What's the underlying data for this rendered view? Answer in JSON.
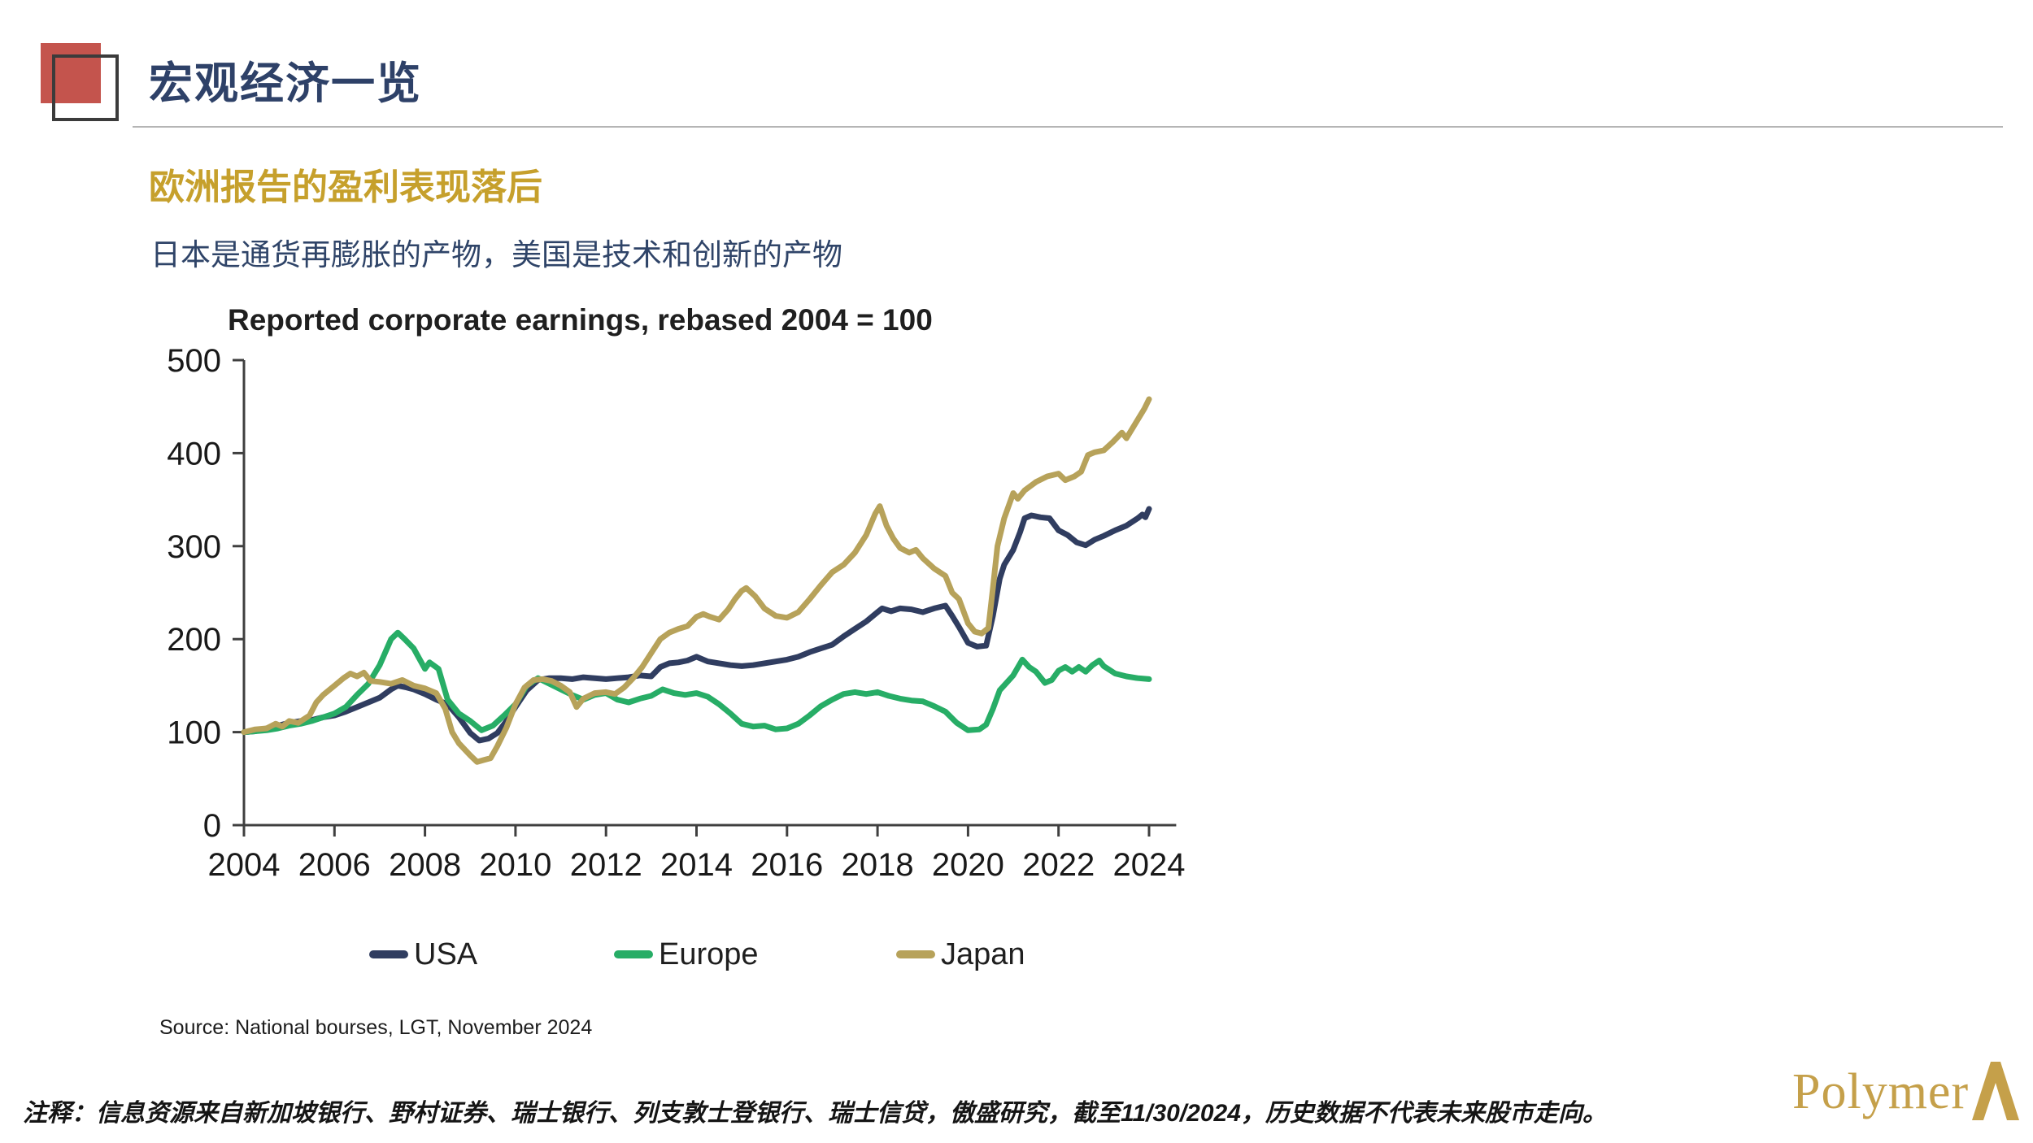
{
  "slide": {
    "title": "宏观经济一览",
    "heading": "欧洲报告的盈利表现落后",
    "subtitle": "日本是通货再膨胀的产物，美国是技术和创新的产物",
    "source": "Source: National bourses, LGT, November 2024",
    "footnote": "注释：信息资源来自新加坡银行、野村证券、瑞士银行、列支敦士登银行、瑞士信贷，傲盛研究，截至11/30/2024，历史数据不代表未来股市走向。",
    "brand": "Polymer",
    "colors": {
      "accent_red": "#c4544d",
      "outline_gray": "#3b3b3b",
      "title_navy": "#2e4168",
      "heading_gold": "#c6a02c",
      "brand_gold": "#c5a04a",
      "axis": "#3f3f3f",
      "divider": "#b5b5b5"
    }
  },
  "chart_data": {
    "type": "line",
    "title": "Reported corporate earnings, rebased 2004 = 100",
    "xlabel": "",
    "ylabel": "",
    "xlim": [
      2004,
      2024.6
    ],
    "ylim": [
      0,
      500
    ],
    "x_ticks": [
      2004,
      2006,
      2008,
      2010,
      2012,
      2014,
      2016,
      2018,
      2020,
      2022,
      2024
    ],
    "y_ticks": [
      0,
      100,
      200,
      300,
      400,
      500
    ],
    "grid": false,
    "legend_position": "bottom",
    "series": [
      {
        "name": "USA",
        "color": "#303d60",
        "points": [
          [
            2004.0,
            100
          ],
          [
            2004.25,
            101
          ],
          [
            2004.5,
            104
          ],
          [
            2004.75,
            107
          ],
          [
            2005.0,
            110
          ],
          [
            2005.25,
            112
          ],
          [
            2005.5,
            113
          ],
          [
            2005.75,
            116
          ],
          [
            2006.0,
            118
          ],
          [
            2006.25,
            122
          ],
          [
            2006.5,
            127
          ],
          [
            2006.75,
            132
          ],
          [
            2007.0,
            137
          ],
          [
            2007.25,
            146
          ],
          [
            2007.4,
            150
          ],
          [
            2007.6,
            148
          ],
          [
            2007.75,
            146
          ],
          [
            2008.0,
            141
          ],
          [
            2008.25,
            135
          ],
          [
            2008.5,
            130
          ],
          [
            2008.75,
            116
          ],
          [
            2009.0,
            99
          ],
          [
            2009.2,
            91
          ],
          [
            2009.4,
            93
          ],
          [
            2009.6,
            99
          ],
          [
            2009.8,
            112
          ],
          [
            2010.0,
            127
          ],
          [
            2010.25,
            145
          ],
          [
            2010.5,
            156
          ],
          [
            2010.75,
            158
          ],
          [
            2011.0,
            158
          ],
          [
            2011.25,
            157
          ],
          [
            2011.5,
            159
          ],
          [
            2011.75,
            158
          ],
          [
            2012.0,
            157
          ],
          [
            2012.25,
            158
          ],
          [
            2012.5,
            159
          ],
          [
            2012.75,
            161
          ],
          [
            2013.0,
            160
          ],
          [
            2013.2,
            170
          ],
          [
            2013.4,
            174
          ],
          [
            2013.6,
            175
          ],
          [
            2013.8,
            177
          ],
          [
            2014.0,
            181
          ],
          [
            2014.25,
            176
          ],
          [
            2014.5,
            174
          ],
          [
            2014.75,
            172
          ],
          [
            2015.0,
            171
          ],
          [
            2015.25,
            172
          ],
          [
            2015.5,
            174
          ],
          [
            2015.75,
            176
          ],
          [
            2016.0,
            178
          ],
          [
            2016.25,
            181
          ],
          [
            2016.5,
            186
          ],
          [
            2016.75,
            190
          ],
          [
            2017.0,
            194
          ],
          [
            2017.25,
            203
          ],
          [
            2017.5,
            211
          ],
          [
            2017.75,
            219
          ],
          [
            2018.0,
            229
          ],
          [
            2018.1,
            233
          ],
          [
            2018.3,
            230
          ],
          [
            2018.5,
            233
          ],
          [
            2018.75,
            232
          ],
          [
            2019.0,
            229
          ],
          [
            2019.25,
            233
          ],
          [
            2019.5,
            236
          ],
          [
            2019.65,
            225
          ],
          [
            2019.8,
            213
          ],
          [
            2020.0,
            196
          ],
          [
            2020.2,
            192
          ],
          [
            2020.4,
            193
          ],
          [
            2020.55,
            225
          ],
          [
            2020.7,
            265
          ],
          [
            2020.8,
            280
          ],
          [
            2021.0,
            296
          ],
          [
            2021.15,
            315
          ],
          [
            2021.25,
            330
          ],
          [
            2021.4,
            333
          ],
          [
            2021.6,
            331
          ],
          [
            2021.8,
            330
          ],
          [
            2022.0,
            317
          ],
          [
            2022.2,
            312
          ],
          [
            2022.4,
            304
          ],
          [
            2022.6,
            301
          ],
          [
            2022.8,
            307
          ],
          [
            2023.0,
            311
          ],
          [
            2023.25,
            317
          ],
          [
            2023.5,
            322
          ],
          [
            2023.75,
            330
          ],
          [
            2023.85,
            334
          ],
          [
            2023.92,
            331
          ],
          [
            2024.0,
            340
          ]
        ]
      },
      {
        "name": "Europe",
        "color": "#27ad66",
        "points": [
          [
            2004.0,
            100
          ],
          [
            2004.25,
            101
          ],
          [
            2004.5,
            102
          ],
          [
            2004.75,
            104
          ],
          [
            2005.0,
            107
          ],
          [
            2005.25,
            109
          ],
          [
            2005.5,
            112
          ],
          [
            2005.75,
            116
          ],
          [
            2006.0,
            120
          ],
          [
            2006.25,
            127
          ],
          [
            2006.5,
            140
          ],
          [
            2006.75,
            152
          ],
          [
            2007.0,
            172
          ],
          [
            2007.25,
            200
          ],
          [
            2007.4,
            207
          ],
          [
            2007.55,
            200
          ],
          [
            2007.75,
            190
          ],
          [
            2008.0,
            168
          ],
          [
            2008.1,
            175
          ],
          [
            2008.3,
            168
          ],
          [
            2008.5,
            135
          ],
          [
            2008.75,
            120
          ],
          [
            2009.0,
            112
          ],
          [
            2009.25,
            102
          ],
          [
            2009.5,
            107
          ],
          [
            2009.75,
            118
          ],
          [
            2010.0,
            130
          ],
          [
            2010.25,
            150
          ],
          [
            2010.5,
            158
          ],
          [
            2010.75,
            152
          ],
          [
            2011.0,
            146
          ],
          [
            2011.25,
            140
          ],
          [
            2011.5,
            135
          ],
          [
            2011.75,
            140
          ],
          [
            2012.0,
            142
          ],
          [
            2012.25,
            135
          ],
          [
            2012.5,
            132
          ],
          [
            2012.75,
            136
          ],
          [
            2013.0,
            139
          ],
          [
            2013.25,
            146
          ],
          [
            2013.5,
            142
          ],
          [
            2013.75,
            140
          ],
          [
            2014.0,
            142
          ],
          [
            2014.25,
            138
          ],
          [
            2014.5,
            130
          ],
          [
            2014.75,
            120
          ],
          [
            2015.0,
            109
          ],
          [
            2015.25,
            106
          ],
          [
            2015.5,
            107
          ],
          [
            2015.75,
            103
          ],
          [
            2016.0,
            104
          ],
          [
            2016.25,
            109
          ],
          [
            2016.5,
            118
          ],
          [
            2016.75,
            128
          ],
          [
            2017.0,
            135
          ],
          [
            2017.25,
            141
          ],
          [
            2017.5,
            143
          ],
          [
            2017.75,
            141
          ],
          [
            2018.0,
            143
          ],
          [
            2018.25,
            139
          ],
          [
            2018.5,
            136
          ],
          [
            2018.75,
            134
          ],
          [
            2019.0,
            133
          ],
          [
            2019.25,
            128
          ],
          [
            2019.5,
            122
          ],
          [
            2019.75,
            110
          ],
          [
            2020.0,
            102
          ],
          [
            2020.25,
            103
          ],
          [
            2020.4,
            108
          ],
          [
            2020.55,
            125
          ],
          [
            2020.7,
            145
          ],
          [
            2020.85,
            153
          ],
          [
            2021.0,
            161
          ],
          [
            2021.2,
            178
          ],
          [
            2021.35,
            170
          ],
          [
            2021.5,
            165
          ],
          [
            2021.7,
            153
          ],
          [
            2021.85,
            156
          ],
          [
            2022.0,
            166
          ],
          [
            2022.15,
            170
          ],
          [
            2022.3,
            165
          ],
          [
            2022.45,
            170
          ],
          [
            2022.6,
            165
          ],
          [
            2022.75,
            172
          ],
          [
            2022.9,
            177
          ],
          [
            2023.0,
            171
          ],
          [
            2023.25,
            163
          ],
          [
            2023.5,
            160
          ],
          [
            2023.75,
            158
          ],
          [
            2024.0,
            157
          ]
        ]
      },
      {
        "name": "Japan",
        "color": "#b7a25a",
        "points": [
          [
            2004.0,
            100
          ],
          [
            2004.25,
            103
          ],
          [
            2004.5,
            104
          ],
          [
            2004.7,
            109
          ],
          [
            2004.85,
            106
          ],
          [
            2005.0,
            112
          ],
          [
            2005.2,
            110
          ],
          [
            2005.45,
            118
          ],
          [
            2005.6,
            132
          ],
          [
            2005.75,
            140
          ],
          [
            2006.0,
            150
          ],
          [
            2006.2,
            158
          ],
          [
            2006.35,
            163
          ],
          [
            2006.5,
            160
          ],
          [
            2006.65,
            164
          ],
          [
            2006.8,
            155
          ],
          [
            2007.0,
            154
          ],
          [
            2007.25,
            152
          ],
          [
            2007.5,
            156
          ],
          [
            2007.75,
            150
          ],
          [
            2008.0,
            147
          ],
          [
            2008.25,
            142
          ],
          [
            2008.45,
            125
          ],
          [
            2008.6,
            100
          ],
          [
            2008.75,
            88
          ],
          [
            2009.0,
            75
          ],
          [
            2009.15,
            68
          ],
          [
            2009.3,
            70
          ],
          [
            2009.45,
            72
          ],
          [
            2009.6,
            85
          ],
          [
            2009.8,
            105
          ],
          [
            2010.0,
            130
          ],
          [
            2010.2,
            148
          ],
          [
            2010.4,
            156
          ],
          [
            2010.6,
            157
          ],
          [
            2010.8,
            155
          ],
          [
            2011.0,
            150
          ],
          [
            2011.2,
            143
          ],
          [
            2011.35,
            127
          ],
          [
            2011.5,
            136
          ],
          [
            2011.75,
            142
          ],
          [
            2012.0,
            143
          ],
          [
            2012.2,
            141
          ],
          [
            2012.4,
            148
          ],
          [
            2012.6,
            158
          ],
          [
            2012.8,
            170
          ],
          [
            2013.0,
            185
          ],
          [
            2013.2,
            200
          ],
          [
            2013.4,
            207
          ],
          [
            2013.6,
            211
          ],
          [
            2013.8,
            214
          ],
          [
            2014.0,
            224
          ],
          [
            2014.15,
            227
          ],
          [
            2014.3,
            224
          ],
          [
            2014.5,
            221
          ],
          [
            2014.7,
            232
          ],
          [
            2014.85,
            243
          ],
          [
            2015.0,
            252
          ],
          [
            2015.1,
            255
          ],
          [
            2015.3,
            246
          ],
          [
            2015.5,
            233
          ],
          [
            2015.75,
            225
          ],
          [
            2016.0,
            223
          ],
          [
            2016.25,
            229
          ],
          [
            2016.5,
            243
          ],
          [
            2016.75,
            258
          ],
          [
            2017.0,
            272
          ],
          [
            2017.25,
            280
          ],
          [
            2017.5,
            293
          ],
          [
            2017.75,
            312
          ],
          [
            2017.95,
            335
          ],
          [
            2018.05,
            343
          ],
          [
            2018.2,
            322
          ],
          [
            2018.35,
            308
          ],
          [
            2018.5,
            298
          ],
          [
            2018.7,
            293
          ],
          [
            2018.85,
            296
          ],
          [
            2019.0,
            287
          ],
          [
            2019.25,
            276
          ],
          [
            2019.5,
            268
          ],
          [
            2019.65,
            250
          ],
          [
            2019.8,
            243
          ],
          [
            2020.0,
            217
          ],
          [
            2020.15,
            208
          ],
          [
            2020.3,
            206
          ],
          [
            2020.45,
            212
          ],
          [
            2020.55,
            255
          ],
          [
            2020.65,
            300
          ],
          [
            2020.8,
            330
          ],
          [
            2021.0,
            357
          ],
          [
            2021.1,
            351
          ],
          [
            2021.25,
            360
          ],
          [
            2021.5,
            369
          ],
          [
            2021.75,
            375
          ],
          [
            2022.0,
            378
          ],
          [
            2022.15,
            371
          ],
          [
            2022.35,
            375
          ],
          [
            2022.5,
            380
          ],
          [
            2022.65,
            398
          ],
          [
            2022.8,
            401
          ],
          [
            2023.0,
            403
          ],
          [
            2023.2,
            412
          ],
          [
            2023.4,
            422
          ],
          [
            2023.5,
            416
          ],
          [
            2023.65,
            428
          ],
          [
            2023.8,
            440
          ],
          [
            2023.9,
            448
          ],
          [
            2024.0,
            458
          ]
        ]
      }
    ]
  }
}
